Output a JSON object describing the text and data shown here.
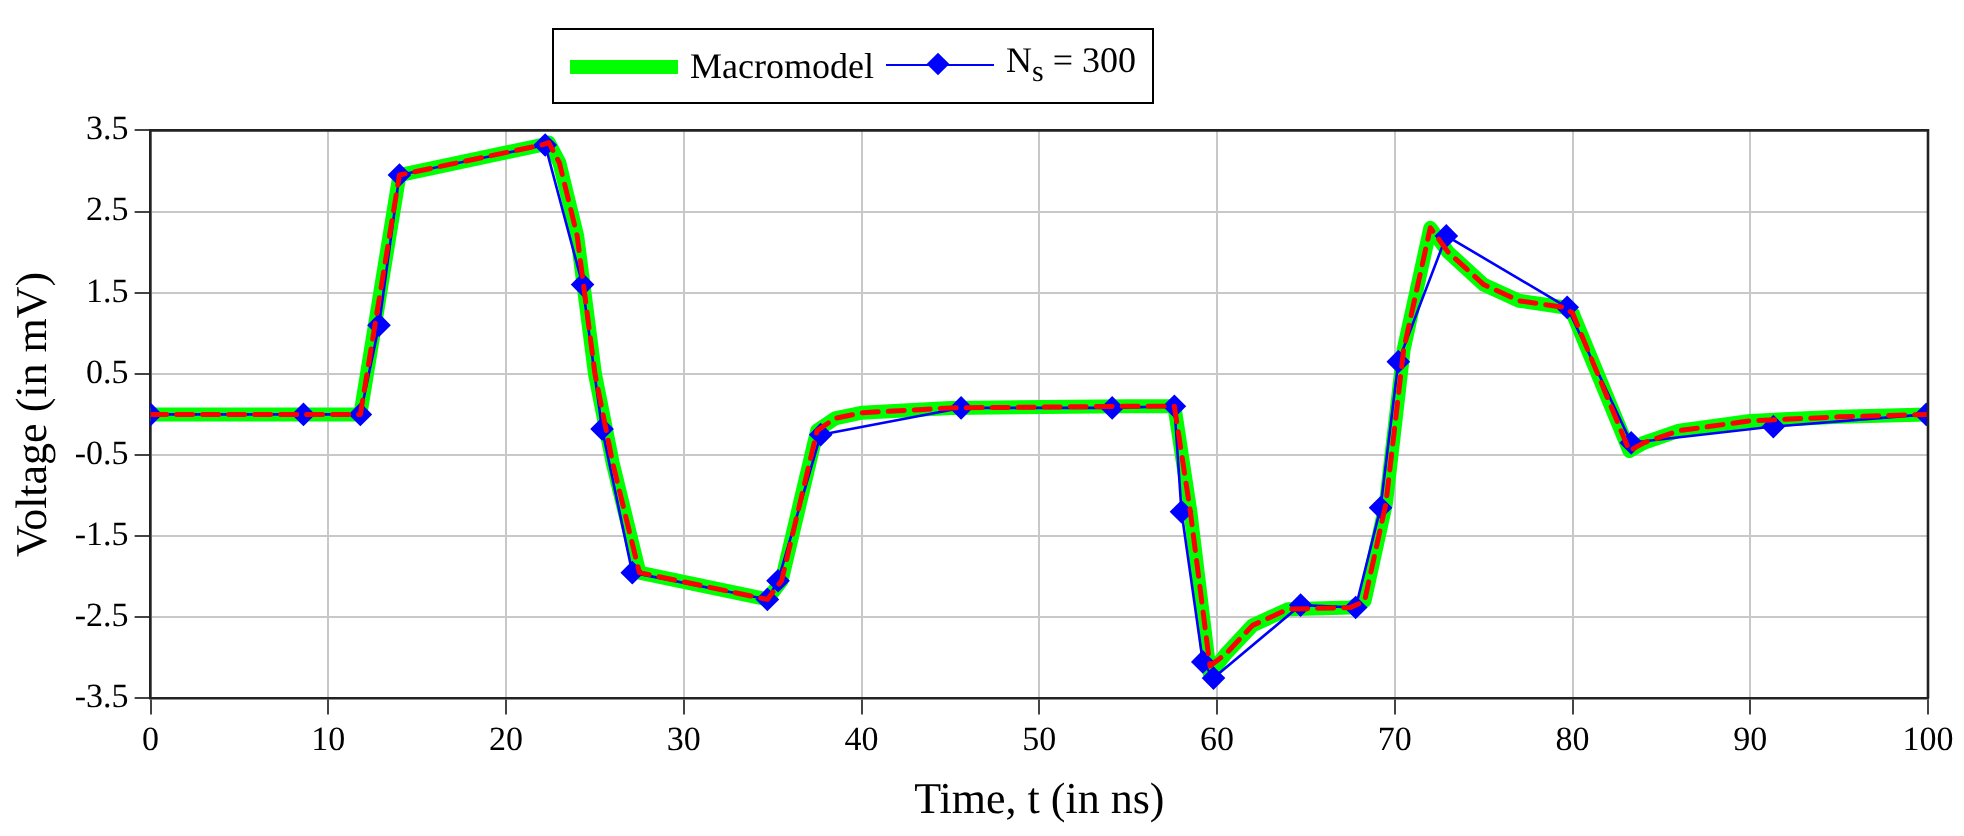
{
  "chart_data": {
    "type": "line",
    "xlabel": "Time, t (in ns)",
    "ylabel": "Voltage (in mV)",
    "xlim": [
      0,
      100
    ],
    "xticks": [
      0,
      10,
      20,
      30,
      40,
      50,
      60,
      70,
      80,
      90,
      100
    ],
    "ylim": [
      -3.5,
      3.5
    ],
    "yticks": [
      -3.5,
      -2.5,
      -1.5,
      -0.5,
      0.5,
      1.5,
      2.5,
      3.5
    ],
    "grid": true,
    "legend": "top",
    "series": [
      {
        "name": "Macromodel",
        "color": "#00ff00",
        "marker": "none",
        "line_style": "solid",
        "x": [
          0,
          11.8,
          14,
          22,
          22.4,
          23,
          24,
          25,
          26,
          27.5,
          34.7,
          35.5,
          37.5,
          38.5,
          40,
          45,
          55,
          57.6,
          58.5,
          59.6,
          60.5,
          62,
          64,
          67.5,
          68.3,
          69.5,
          70.5,
          72,
          73,
          75,
          77,
          79.5,
          80,
          83.2,
          84,
          86,
          90,
          95,
          100
        ],
        "values": [
          0,
          0,
          2.95,
          3.32,
          3.35,
          3.1,
          2.2,
          0.5,
          -0.6,
          -1.95,
          -2.28,
          -2.05,
          -0.2,
          -0.05,
          0.02,
          0.08,
          0.1,
          0.1,
          -1.2,
          -3.2,
          -2.95,
          -2.6,
          -2.4,
          -2.38,
          -2.3,
          -1.1,
          0.8,
          2.3,
          2.0,
          1.6,
          1.4,
          1.32,
          1.25,
          -0.45,
          -0.35,
          -0.2,
          -0.08,
          -0.03,
          0
        ]
      },
      {
        "name": "N$_{s}$ = 300",
        "color": "#0000ff",
        "marker": "diamond",
        "line_style": "solid",
        "x": [
          0,
          8.6,
          11.8,
          12.85,
          14,
          22.2,
          24.3,
          25.4,
          27.1,
          34.7,
          35.3,
          37.7,
          45.6,
          54.1,
          57.6,
          58,
          59.2,
          59.8,
          64.7,
          67.8,
          69.2,
          70.2,
          72.9,
          79.7,
          83.3,
          91.3,
          99.9
        ],
        "values": [
          0,
          0,
          0,
          1.1,
          2.95,
          3.32,
          1.6,
          -0.18,
          -1.95,
          -2.28,
          -2.05,
          -0.25,
          0.08,
          0.08,
          0.1,
          -1.2,
          -3.05,
          -3.25,
          -2.35,
          -2.38,
          -1.15,
          0.65,
          2.2,
          1.32,
          -0.35,
          -0.15,
          0
        ]
      },
      {
        "color": "#ff0000",
        "marker": "none",
        "line_style": "dashed",
        "x": [
          0,
          11.8,
          14,
          22,
          22.4,
          23,
          24,
          25,
          26,
          27.5,
          34.7,
          35.5,
          37.5,
          38.5,
          40,
          45,
          55,
          57.6,
          58.5,
          59.6,
          60.5,
          62,
          64,
          67.5,
          68.3,
          69.5,
          70.5,
          72,
          73,
          75,
          77,
          79.5,
          80,
          83.2,
          84,
          86,
          90,
          95,
          100
        ],
        "values": [
          0,
          0,
          2.95,
          3.32,
          3.35,
          3.1,
          2.2,
          0.5,
          -0.6,
          -1.95,
          -2.28,
          -2.05,
          -0.2,
          -0.05,
          0.02,
          0.08,
          0.1,
          0.1,
          -1.2,
          -3.1,
          -2.95,
          -2.6,
          -2.4,
          -2.38,
          -2.3,
          -1.1,
          0.8,
          2.3,
          2.0,
          1.6,
          1.4,
          1.32,
          1.25,
          -0.45,
          -0.35,
          -0.2,
          -0.08,
          -0.03,
          0
        ]
      }
    ]
  }
}
